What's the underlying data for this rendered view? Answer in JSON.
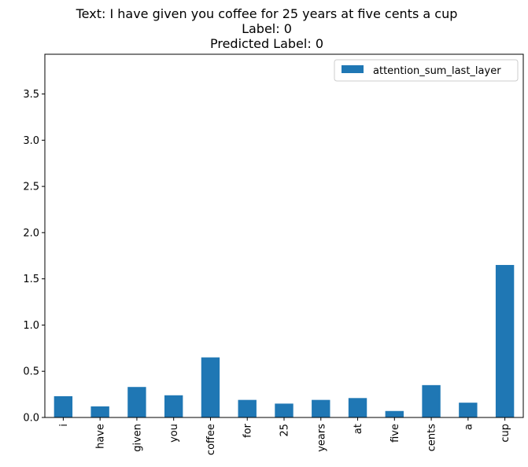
{
  "chart_data": {
    "type": "bar",
    "title_lines": [
      "Text: I have given you coffee for 25 years at five cents a cup",
      "Label: 0",
      "Predicted Label: 0"
    ],
    "xlabel": "",
    "ylabel": "",
    "categories": [
      "i",
      "have",
      "given",
      "you",
      "coffee",
      "for",
      "25",
      "years",
      "at",
      "five",
      "cents",
      "a",
      "cup"
    ],
    "series": [
      {
        "name": "attention_sum_last_layer",
        "color": "#1f77b4",
        "values": [
          0.23,
          0.12,
          0.33,
          0.24,
          0.65,
          0.19,
          0.15,
          0.19,
          0.21,
          0.07,
          0.35,
          0.16,
          1.65
        ]
      }
    ],
    "ylim": [
      0,
      3.93
    ],
    "yticks": [
      0.0,
      0.5,
      1.0,
      1.5,
      2.0,
      2.5,
      3.0,
      3.5
    ],
    "ytick_labels": [
      "0.0",
      "0.5",
      "1.0",
      "1.5",
      "2.0",
      "2.5",
      "3.0",
      "3.5"
    ],
    "grid": false,
    "legend_position": "top-right"
  }
}
